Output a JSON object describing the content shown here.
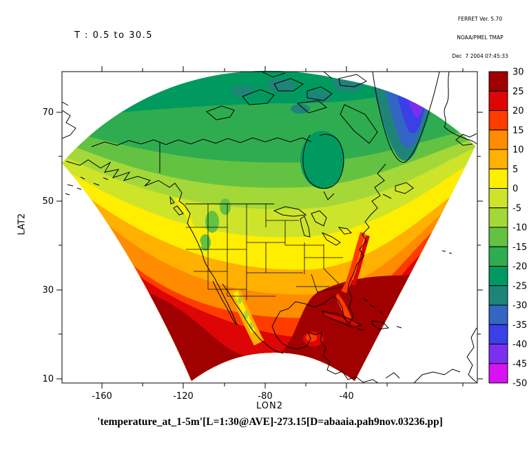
{
  "header": {
    "line1": "FERRET Ver. 5.70",
    "line2": "NOAA/PMEL TMAP",
    "line3": "Dec  7 2004 07:45:33"
  },
  "title": "T : 0.5 to 30.5",
  "caption": "'temperature_at_1-5m'[L=1:30@AVE]-273.15[D=abaaia.pah9nov.03236.pp]",
  "x_axis": {
    "label": "LON2",
    "tick_labels": [
      "-160",
      "-120",
      "-80",
      "-40"
    ]
  },
  "y_axis": {
    "label": "LAT2",
    "tick_labels": [
      "70",
      "50",
      "30",
      "10"
    ]
  },
  "colorbar": {
    "labels": [
      "30",
      "25",
      "20",
      "15",
      "10",
      "5",
      "0",
      "-5",
      "-10",
      "-15",
      "-20",
      "-25",
      "-30",
      "-35",
      "-40",
      "-45",
      "-50"
    ],
    "colors": [
      "#a00000",
      "#dd0505",
      "#ff3c00",
      "#ff8c00",
      "#ffb000",
      "#ffee00",
      "#cde42a",
      "#a4d838",
      "#64c242",
      "#30ac50",
      "#009a60",
      "#1f8478",
      "#3366c2",
      "#3a3fe8",
      "#7d2ff0",
      "#d911f7"
    ]
  },
  "chart_data": {
    "type": "heatmap",
    "title": "T : 0.5 to 30.5",
    "xlabel": "LON2",
    "ylabel": "LAT2",
    "x_ticks": [
      -160,
      -120,
      -80,
      -40
    ],
    "y_ticks": [
      10,
      30,
      50,
      70
    ],
    "colorbar_levels": [
      -50,
      -45,
      -40,
      -35,
      -30,
      -25,
      -20,
      -15,
      -10,
      -5,
      0,
      5,
      10,
      15,
      20,
      25,
      30
    ],
    "colorbar_colors_top_to_bottom": [
      "#a00000",
      "#dd0505",
      "#ff3c00",
      "#ff8c00",
      "#ffb000",
      "#ffee00",
      "#cde42a",
      "#a4d838",
      "#64c242",
      "#30ac50",
      "#009a60",
      "#1f8478",
      "#3366c2",
      "#3a3fe8",
      "#7d2ff0",
      "#d911f7"
    ],
    "variable": "'temperature_at_1-5m'[L=1:30@AVE]-273.15",
    "dataset": "abaaia.pah9nov.03236.pp",
    "legend_position": "right",
    "grid": false,
    "description": "Filled temperature field (deg C) on a curvilinear fan-shaped grid over North America; coldest values (purple/blue, -50 to -30) over Greenland and the Arctic, greens (-25 to -5) across Canada, yellows (0 to 5) across the northern US, oranges and reds (10 to 25) across the southern US and oceans, dark red (25 to 30) over Mexico, the Gulf of Mexico and the Caribbean."
  }
}
